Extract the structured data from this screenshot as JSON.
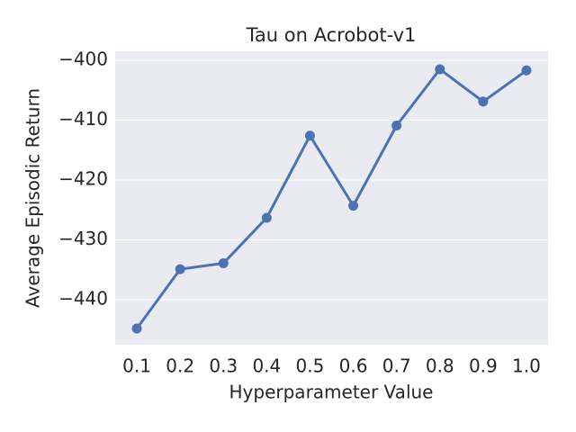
{
  "chart_data": {
    "type": "line",
    "title": "Tau on Acrobot-v1",
    "x_label": "Hyperparameter Value",
    "y_label": "Average Episodic Return",
    "categories": [
      "0.1",
      "0.2",
      "0.3",
      "0.4",
      "0.5",
      "0.6",
      "0.7",
      "0.8",
      "0.9",
      "1.0"
    ],
    "series": [
      {
        "name": "Tau",
        "color": "#4c72b0",
        "values": [
          -444.8,
          -434.9,
          -433.9,
          -426.3,
          -412.6,
          -424.3,
          -410.9,
          -401.5,
          -406.9,
          -401.7
        ]
      }
    ],
    "ylim": [
      -447.5,
      -398.5
    ],
    "yticks": [
      {
        "value": -440,
        "label": "−440"
      },
      {
        "value": -430,
        "label": "−430"
      },
      {
        "value": -420,
        "label": "−420"
      },
      {
        "value": -410,
        "label": "−410"
      },
      {
        "value": -400,
        "label": "−400"
      }
    ],
    "grid": true
  }
}
